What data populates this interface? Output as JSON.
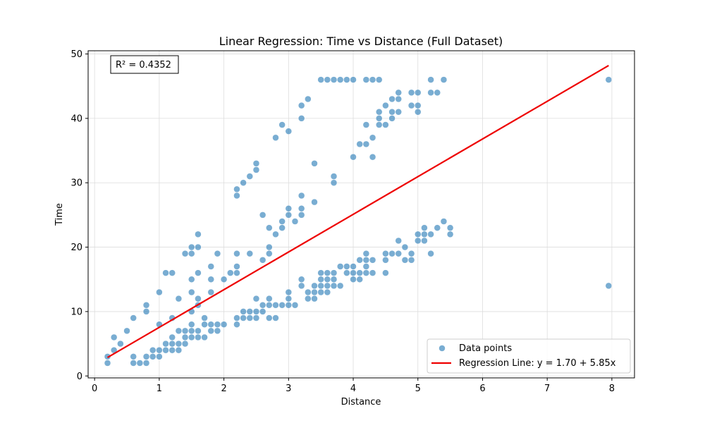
{
  "chart_data": {
    "type": "scatter",
    "title": "Linear Regression: Time vs Distance (Full Dataset)",
    "xlabel": "Distance",
    "ylabel": "Time",
    "xlim": [
      -0.1,
      8.35
    ],
    "ylim": [
      -0.3,
      50.5
    ],
    "xticks": [
      0,
      1,
      2,
      3,
      4,
      5,
      6,
      7,
      8
    ],
    "yticks": [
      0,
      10,
      20,
      30,
      40,
      50
    ],
    "grid": true,
    "legend_position": "lower-right",
    "colors": {
      "points": "#1f77b4",
      "regression": "#ee0000"
    },
    "annotation": "R² = 0.4352",
    "series": [
      {
        "name": "Data points",
        "kind": "scatter",
        "points": [
          [
            0.2,
            2
          ],
          [
            0.2,
            3
          ],
          [
            0.3,
            4
          ],
          [
            0.3,
            6
          ],
          [
            0.4,
            5
          ],
          [
            0.5,
            7
          ],
          [
            0.6,
            2
          ],
          [
            0.6,
            3
          ],
          [
            0.6,
            9
          ],
          [
            0.7,
            2
          ],
          [
            0.8,
            2
          ],
          [
            0.8,
            3
          ],
          [
            0.8,
            10
          ],
          [
            0.8,
            11
          ],
          [
            0.9,
            3
          ],
          [
            0.9,
            4
          ],
          [
            1.0,
            3
          ],
          [
            1.0,
            4
          ],
          [
            1.0,
            8
          ],
          [
            1.0,
            13
          ],
          [
            1.1,
            4
          ],
          [
            1.1,
            5
          ],
          [
            1.1,
            16
          ],
          [
            1.2,
            4
          ],
          [
            1.2,
            5
          ],
          [
            1.2,
            6
          ],
          [
            1.2,
            9
          ],
          [
            1.2,
            16
          ],
          [
            1.3,
            4
          ],
          [
            1.3,
            5
          ],
          [
            1.3,
            7
          ],
          [
            1.3,
            12
          ],
          [
            1.4,
            5
          ],
          [
            1.4,
            6
          ],
          [
            1.4,
            7
          ],
          [
            1.4,
            19
          ],
          [
            1.5,
            6
          ],
          [
            1.5,
            7
          ],
          [
            1.5,
            8
          ],
          [
            1.5,
            10
          ],
          [
            1.5,
            13
          ],
          [
            1.5,
            15
          ],
          [
            1.5,
            19
          ],
          [
            1.5,
            20
          ],
          [
            1.6,
            6
          ],
          [
            1.6,
            7
          ],
          [
            1.6,
            11
          ],
          [
            1.6,
            12
          ],
          [
            1.6,
            16
          ],
          [
            1.6,
            20
          ],
          [
            1.6,
            22
          ],
          [
            1.7,
            6
          ],
          [
            1.7,
            8
          ],
          [
            1.7,
            9
          ],
          [
            1.8,
            7
          ],
          [
            1.8,
            8
          ],
          [
            1.8,
            13
          ],
          [
            1.8,
            15
          ],
          [
            1.8,
            17
          ],
          [
            1.9,
            7
          ],
          [
            1.9,
            8
          ],
          [
            1.9,
            19
          ],
          [
            2.0,
            8
          ],
          [
            2.0,
            15
          ],
          [
            2.1,
            16
          ],
          [
            2.2,
            8
          ],
          [
            2.2,
            9
          ],
          [
            2.2,
            16
          ],
          [
            2.2,
            17
          ],
          [
            2.2,
            19
          ],
          [
            2.2,
            28
          ],
          [
            2.2,
            29
          ],
          [
            2.3,
            9
          ],
          [
            2.3,
            10
          ],
          [
            2.3,
            30
          ],
          [
            2.4,
            9
          ],
          [
            2.4,
            10
          ],
          [
            2.4,
            19
          ],
          [
            2.4,
            31
          ],
          [
            2.5,
            9
          ],
          [
            2.5,
            10
          ],
          [
            2.5,
            12
          ],
          [
            2.5,
            32
          ],
          [
            2.5,
            33
          ],
          [
            2.6,
            10
          ],
          [
            2.6,
            11
          ],
          [
            2.6,
            18
          ],
          [
            2.6,
            25
          ],
          [
            2.7,
            9
          ],
          [
            2.7,
            11
          ],
          [
            2.7,
            12
          ],
          [
            2.7,
            19
          ],
          [
            2.7,
            20
          ],
          [
            2.7,
            23
          ],
          [
            2.8,
            9
          ],
          [
            2.8,
            11
          ],
          [
            2.8,
            22
          ],
          [
            2.8,
            37
          ],
          [
            2.9,
            11
          ],
          [
            2.9,
            23
          ],
          [
            2.9,
            24
          ],
          [
            2.9,
            39
          ],
          [
            3.0,
            11
          ],
          [
            3.0,
            12
          ],
          [
            3.0,
            13
          ],
          [
            3.0,
            25
          ],
          [
            3.0,
            26
          ],
          [
            3.0,
            38
          ],
          [
            3.1,
            11
          ],
          [
            3.1,
            24
          ],
          [
            3.2,
            14
          ],
          [
            3.2,
            15
          ],
          [
            3.2,
            25
          ],
          [
            3.2,
            26
          ],
          [
            3.2,
            28
          ],
          [
            3.2,
            40
          ],
          [
            3.2,
            42
          ],
          [
            3.3,
            12
          ],
          [
            3.3,
            13
          ],
          [
            3.3,
            43
          ],
          [
            3.4,
            12
          ],
          [
            3.4,
            13
          ],
          [
            3.4,
            14
          ],
          [
            3.4,
            27
          ],
          [
            3.4,
            33
          ],
          [
            3.5,
            13
          ],
          [
            3.5,
            14
          ],
          [
            3.5,
            15
          ],
          [
            3.5,
            16
          ],
          [
            3.5,
            46
          ],
          [
            3.6,
            13
          ],
          [
            3.6,
            14
          ],
          [
            3.6,
            15
          ],
          [
            3.6,
            16
          ],
          [
            3.6,
            46
          ],
          [
            3.7,
            14
          ],
          [
            3.7,
            15
          ],
          [
            3.7,
            16
          ],
          [
            3.7,
            30
          ],
          [
            3.7,
            31
          ],
          [
            3.7,
            46
          ],
          [
            3.8,
            14
          ],
          [
            3.8,
            17
          ],
          [
            3.8,
            46
          ],
          [
            3.9,
            16
          ],
          [
            3.9,
            17
          ],
          [
            3.9,
            46
          ],
          [
            4.0,
            15
          ],
          [
            4.0,
            16
          ],
          [
            4.0,
            17
          ],
          [
            4.0,
            34
          ],
          [
            4.0,
            46
          ],
          [
            4.1,
            15
          ],
          [
            4.1,
            16
          ],
          [
            4.1,
            18
          ],
          [
            4.1,
            36
          ],
          [
            4.2,
            16
          ],
          [
            4.2,
            17
          ],
          [
            4.2,
            18
          ],
          [
            4.2,
            19
          ],
          [
            4.2,
            36
          ],
          [
            4.2,
            39
          ],
          [
            4.2,
            46
          ],
          [
            4.3,
            16
          ],
          [
            4.3,
            18
          ],
          [
            4.3,
            34
          ],
          [
            4.3,
            37
          ],
          [
            4.3,
            46
          ],
          [
            4.4,
            39
          ],
          [
            4.4,
            40
          ],
          [
            4.4,
            41
          ],
          [
            4.4,
            46
          ],
          [
            4.5,
            16
          ],
          [
            4.5,
            18
          ],
          [
            4.5,
            19
          ],
          [
            4.5,
            39
          ],
          [
            4.5,
            42
          ],
          [
            4.6,
            19
          ],
          [
            4.6,
            40
          ],
          [
            4.6,
            41
          ],
          [
            4.6,
            43
          ],
          [
            4.7,
            19
          ],
          [
            4.7,
            21
          ],
          [
            4.7,
            41
          ],
          [
            4.7,
            43
          ],
          [
            4.7,
            44
          ],
          [
            4.8,
            18
          ],
          [
            4.8,
            20
          ],
          [
            4.9,
            18
          ],
          [
            4.9,
            19
          ],
          [
            4.9,
            42
          ],
          [
            4.9,
            44
          ],
          [
            5.0,
            21
          ],
          [
            5.0,
            22
          ],
          [
            5.0,
            41
          ],
          [
            5.0,
            42
          ],
          [
            5.0,
            44
          ],
          [
            5.1,
            21
          ],
          [
            5.1,
            22
          ],
          [
            5.1,
            23
          ],
          [
            5.2,
            19
          ],
          [
            5.2,
            22
          ],
          [
            5.2,
            44
          ],
          [
            5.2,
            46
          ],
          [
            5.3,
            23
          ],
          [
            5.3,
            44
          ],
          [
            5.4,
            24
          ],
          [
            5.4,
            46
          ],
          [
            5.5,
            22
          ],
          [
            5.5,
            23
          ],
          [
            7.95,
            14
          ],
          [
            7.95,
            46
          ]
        ]
      },
      {
        "name": "Regression Line: y = 1.70 + 5.85x",
        "kind": "line",
        "intercept": 1.7,
        "slope": 5.85,
        "x_range": [
          0.2,
          7.95
        ]
      }
    ]
  }
}
